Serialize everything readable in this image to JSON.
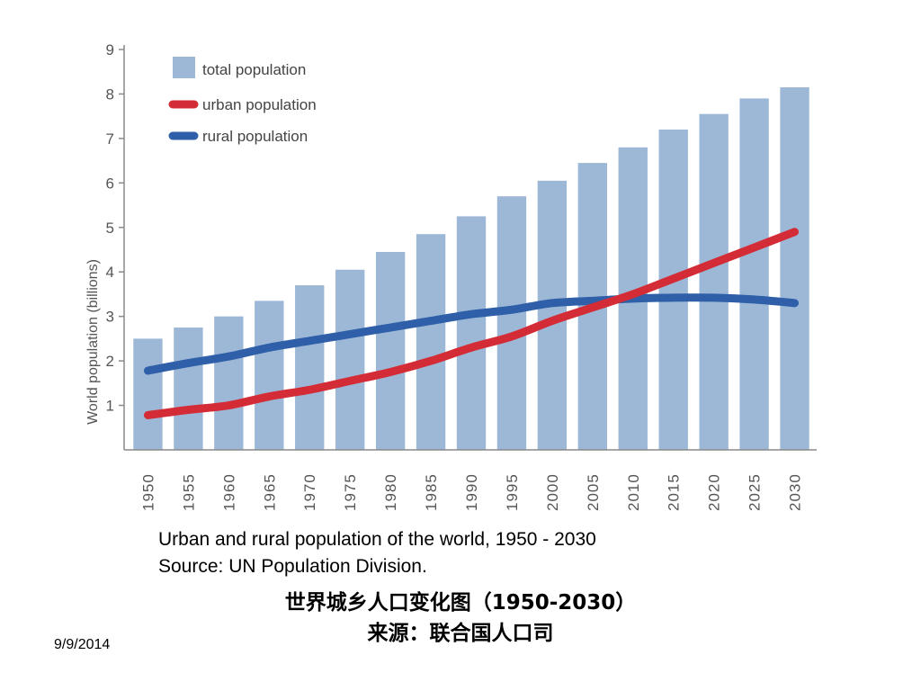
{
  "chart_data": {
    "type": "bar",
    "ylabel": "World population (billions)",
    "ylim": [
      0,
      9
    ],
    "yticks": [
      "1",
      "2",
      "3",
      "4",
      "5",
      "6",
      "7",
      "8",
      "9"
    ],
    "categories": [
      "1950",
      "1955",
      "1960",
      "1965",
      "1970",
      "1975",
      "1980",
      "1985",
      "1990",
      "1995",
      "2000",
      "2005",
      "2010",
      "2015",
      "2020",
      "2025",
      "2030"
    ],
    "series": [
      {
        "name": "total population",
        "kind": "bar",
        "color": "#9db8d6",
        "values": [
          2.5,
          2.75,
          3.0,
          3.35,
          3.7,
          4.05,
          4.45,
          4.85,
          5.25,
          5.7,
          6.05,
          6.45,
          6.8,
          7.2,
          7.55,
          7.9,
          8.15
        ]
      },
      {
        "name": "urban population",
        "kind": "line",
        "color": "#d42c36",
        "values": [
          0.78,
          0.9,
          1.0,
          1.2,
          1.35,
          1.55,
          1.75,
          2.0,
          2.3,
          2.55,
          2.9,
          3.2,
          3.5,
          3.85,
          4.2,
          4.55,
          4.9
        ]
      },
      {
        "name": "rural population",
        "kind": "line",
        "color": "#2e5fa8",
        "values": [
          1.78,
          1.95,
          2.1,
          2.3,
          2.45,
          2.6,
          2.75,
          2.9,
          3.05,
          3.15,
          3.3,
          3.35,
          3.4,
          3.42,
          3.42,
          3.38,
          3.3
        ]
      }
    ],
    "legend": "top-left",
    "grid": false
  },
  "captions": {
    "line1": "Urban and rural population of the world, 1950 - 2030",
    "line2": "Source: UN Population Division.",
    "line3": "世界城乡人口变化图（1950-2030）",
    "line4": "来源：联合国人口司"
  },
  "date": "9/9/2014"
}
